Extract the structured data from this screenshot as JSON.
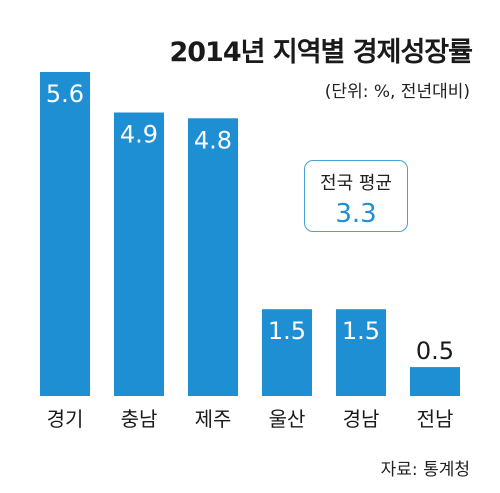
{
  "chart_data": {
    "type": "bar",
    "title": "2014년 지역별 경제성장률",
    "subtitle": "(단위: %, 전년대비)",
    "categories": [
      "경기",
      "충남",
      "제주",
      "울산",
      "경남",
      "전남"
    ],
    "values": [
      5.6,
      4.9,
      4.8,
      1.5,
      1.5,
      0.5
    ],
    "value_labels": [
      "5.6",
      "4.9",
      "4.8",
      "1.5",
      "1.5",
      "0.5"
    ],
    "ylim": [
      0,
      5.6
    ],
    "grid": false,
    "legend": "none",
    "annotation": {
      "label": "전국 평균",
      "value": "3.3"
    },
    "source": "자료: 통계청",
    "bar_color": "#1e8fd3",
    "accent_color": "#4a9fd6"
  }
}
